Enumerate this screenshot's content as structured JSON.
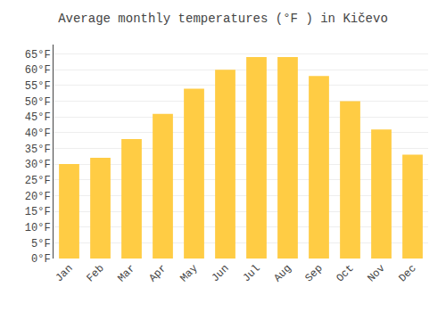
{
  "chart_data": {
    "type": "bar",
    "title": "Average monthly temperatures (°F ) in Kičevo",
    "categories": [
      "Jan",
      "Feb",
      "Mar",
      "Apr",
      "May",
      "Jun",
      "Jul",
      "Aug",
      "Sep",
      "Oct",
      "Nov",
      "Dec"
    ],
    "values": [
      30,
      32,
      38,
      46,
      54,
      60,
      64,
      64,
      58,
      50,
      41,
      33
    ],
    "color": "#FFCC44",
    "ylim": [
      0,
      68
    ],
    "yticks": [
      {
        "value": 0,
        "label": "0°F"
      },
      {
        "value": 5,
        "label": "5°F"
      },
      {
        "value": 10,
        "label": "10°F"
      },
      {
        "value": 15,
        "label": "15°F"
      },
      {
        "value": 20,
        "label": "20°F"
      },
      {
        "value": 25,
        "label": "25°F"
      },
      {
        "value": 30,
        "label": "30°F"
      },
      {
        "value": 35,
        "label": "35°F"
      },
      {
        "value": 40,
        "label": "40°F"
      },
      {
        "value": 45,
        "label": "45°F"
      },
      {
        "value": 50,
        "label": "50°F"
      },
      {
        "value": 55,
        "label": "55°F"
      },
      {
        "value": 60,
        "label": "60°F"
      },
      {
        "value": 65,
        "label": "65°F"
      }
    ],
    "grid": true
  }
}
